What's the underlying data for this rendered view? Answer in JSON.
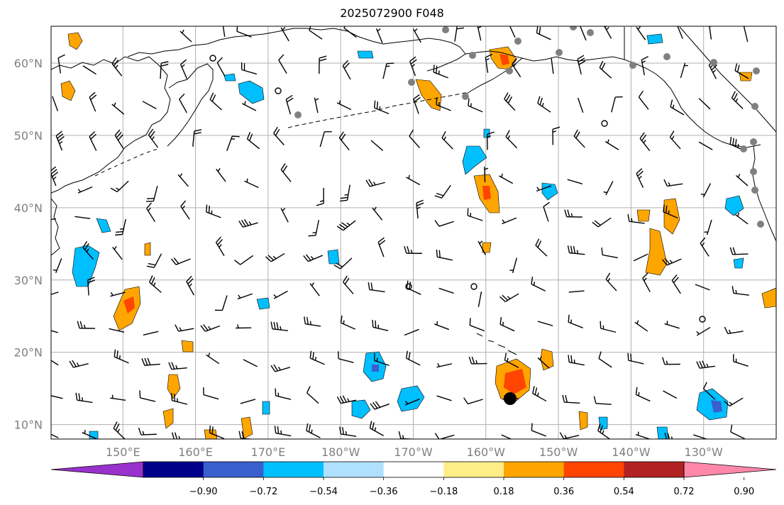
{
  "title": "2025072900 F048",
  "map": {
    "lat_labels": [
      {
        "text": "60°N",
        "lat": 60
      },
      {
        "text": "50°N",
        "lat": 50
      },
      {
        "text": "40°N",
        "lat": 40
      },
      {
        "text": "30°N",
        "lat": 30
      },
      {
        "text": "20°N",
        "lat": 20
      },
      {
        "text": "10°N",
        "lat": 10
      }
    ],
    "lon_labels": [
      {
        "text": "150°E",
        "lon": 150
      },
      {
        "text": "160°E",
        "lon": 160
      },
      {
        "text": "170°E",
        "lon": 170
      },
      {
        "text": "180°W",
        "lon": 180
      },
      {
        "text": "170°W",
        "lon": 190
      },
      {
        "text": "160°W",
        "lon": 200
      },
      {
        "text": "150°W",
        "lon": 210
      },
      {
        "text": "140°W",
        "lon": 220
      },
      {
        "text": "130°W",
        "lon": 230
      }
    ],
    "lon_range": [
      140.1,
      240.0
    ],
    "lat_range": [
      8.0,
      65.1
    ],
    "colors": {
      "coast": "#000000",
      "grid": "#b0b0b0",
      "station_marker": "#808080",
      "storm_center": "#000000"
    }
  },
  "colorbar": {
    "colors": [
      "#9932cc",
      "#00008b",
      "#3a5fcd",
      "#00bfff",
      "#b0e0ff",
      "#ffffff",
      "#ffee88",
      "#ffa500",
      "#ff4500",
      "#b22222",
      "#ff88aa"
    ],
    "labels": [
      "−0.90",
      "−0.72",
      "−0.54",
      "−0.36",
      "−0.18",
      "0.18",
      "0.36",
      "0.54",
      "0.72",
      "0.90"
    ]
  }
}
